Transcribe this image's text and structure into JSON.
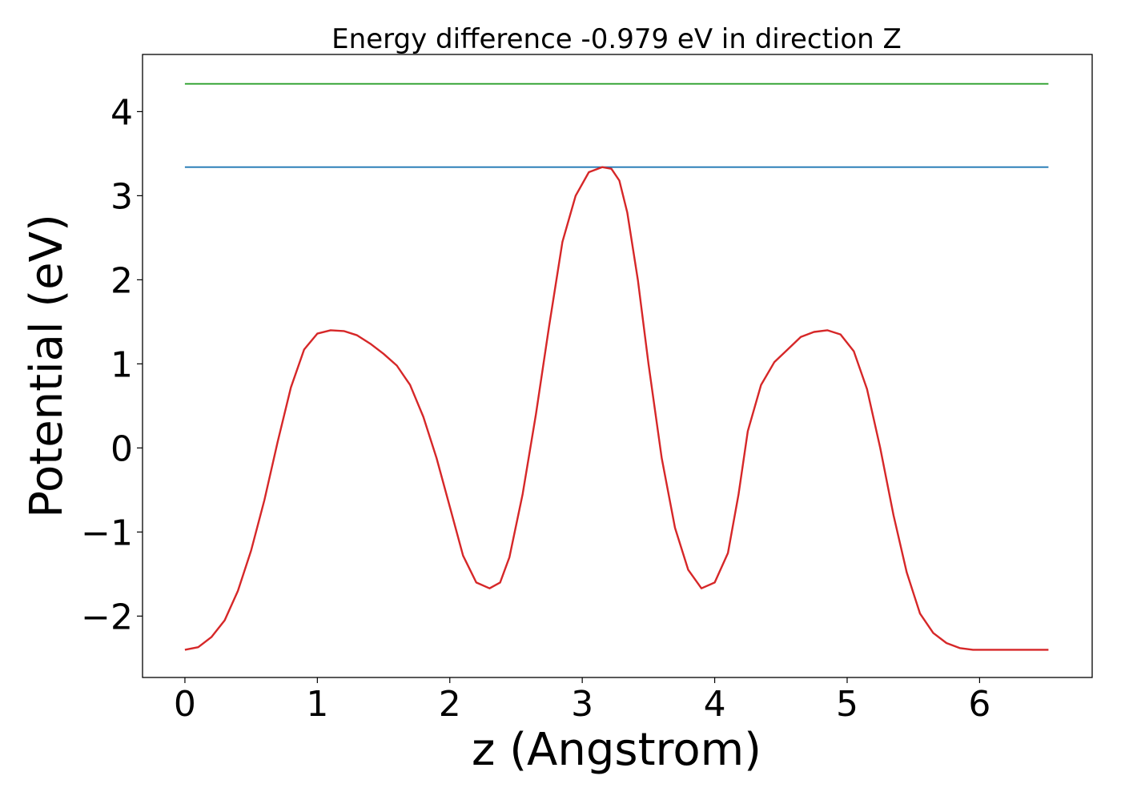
{
  "chart_data": {
    "type": "line",
    "title": "Energy difference -0.979 eV in direction Z",
    "xlabel": "z (Angstrom)",
    "ylabel": "Potential (eV)",
    "xlim": [
      -0.32,
      6.85
    ],
    "ylim": [
      -2.73,
      4.68
    ],
    "xticks": [
      0,
      1,
      2,
      3,
      4,
      5,
      6
    ],
    "yticks": [
      -2,
      -1,
      0,
      1,
      2,
      3,
      4
    ],
    "xtick_labels": [
      "0",
      "1",
      "2",
      "3",
      "4",
      "5",
      "6"
    ],
    "ytick_labels": [
      "−2",
      "−1",
      "0",
      "1",
      "2",
      "3",
      "4"
    ],
    "grid": false,
    "legend": "none",
    "series": [
      {
        "color": "#2ca02c",
        "x": [
          0,
          6.52
        ],
        "y": [
          4.33,
          4.33
        ]
      },
      {
        "color": "#1f77b4",
        "x": [
          0,
          6.52
        ],
        "y": [
          3.34,
          3.34
        ]
      },
      {
        "color": "#d62728",
        "x": [
          0,
          0.1,
          0.2,
          0.3,
          0.4,
          0.5,
          0.6,
          0.7,
          0.8,
          0.9,
          1.0,
          1.1,
          1.2,
          1.3,
          1.4,
          1.5,
          1.6,
          1.7,
          1.8,
          1.9,
          2.0,
          2.1,
          2.2,
          2.3,
          2.38,
          2.45,
          2.55,
          2.65,
          2.75,
          2.85,
          2.95,
          3.05,
          3.15,
          3.22,
          3.28,
          3.34,
          3.42,
          3.5,
          3.6,
          3.7,
          3.8,
          3.9,
          4.0,
          4.1,
          4.18,
          4.25,
          4.35,
          4.45,
          4.55,
          4.65,
          4.75,
          4.85,
          4.95,
          5.05,
          5.15,
          5.25,
          5.35,
          5.45,
          5.55,
          5.65,
          5.75,
          5.85,
          5.95,
          6.05,
          6.15,
          6.25,
          6.35,
          6.45,
          6.52
        ],
        "y": [
          -2.4,
          -2.37,
          -2.25,
          -2.05,
          -1.7,
          -1.22,
          -0.62,
          0.07,
          0.72,
          1.17,
          1.36,
          1.4,
          1.39,
          1.34,
          1.24,
          1.12,
          0.98,
          0.75,
          0.37,
          -0.12,
          -0.7,
          -1.28,
          -1.6,
          -1.67,
          -1.6,
          -1.3,
          -0.55,
          0.4,
          1.45,
          2.45,
          3.0,
          3.28,
          3.34,
          3.32,
          3.18,
          2.8,
          2.0,
          1.0,
          -0.12,
          -0.95,
          -1.45,
          -1.67,
          -1.6,
          -1.25,
          -0.55,
          0.2,
          0.75,
          1.02,
          1.17,
          1.32,
          1.38,
          1.4,
          1.35,
          1.15,
          0.7,
          0.0,
          -0.8,
          -1.48,
          -1.97,
          -2.2,
          -2.32,
          -2.38,
          -2.4,
          -2.4,
          -2.4,
          -2.4,
          -2.4,
          -2.4,
          -2.4
        ]
      }
    ]
  }
}
